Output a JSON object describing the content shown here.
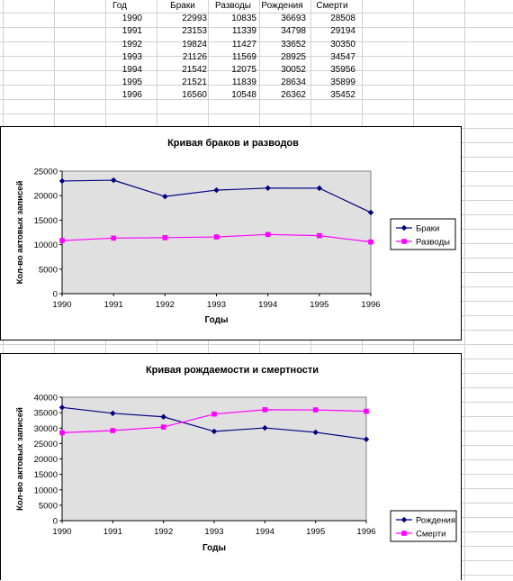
{
  "table": {
    "headers": [
      "Год",
      "Браки",
      "Разводы",
      "Рождения",
      "Смерти"
    ],
    "rows": [
      [
        "1990",
        "22993",
        "10835",
        "36693",
        "28508"
      ],
      [
        "1991",
        "23153",
        "11339",
        "34798",
        "29194"
      ],
      [
        "1992",
        "19824",
        "11427",
        "33652",
        "30350"
      ],
      [
        "1993",
        "21126",
        "11569",
        "28925",
        "34547"
      ],
      [
        "1994",
        "21542",
        "12075",
        "30052",
        "35956"
      ],
      [
        "1995",
        "21521",
        "11839",
        "28634",
        "35899"
      ],
      [
        "1996",
        "16560",
        "10548",
        "26362",
        "35452"
      ]
    ]
  },
  "chart_data": [
    {
      "type": "line",
      "title": "Кривая браков и разводов",
      "xlabel": "Годы",
      "ylabel": "Кол-во актовых записей",
      "x": [
        1990,
        1991,
        1992,
        1993,
        1994,
        1995,
        1996
      ],
      "ylim": [
        0,
        25000
      ],
      "yticks": [
        0,
        5000,
        10000,
        15000,
        20000,
        25000
      ],
      "grid": false,
      "legend": "right",
      "series": [
        {
          "name": "Браки",
          "color": "#000080",
          "marker": "diamond",
          "values": [
            22993,
            23153,
            19824,
            21126,
            21542,
            21521,
            16560
          ]
        },
        {
          "name": "Разводы",
          "color": "#ff00ff",
          "marker": "square",
          "values": [
            10835,
            11339,
            11427,
            11569,
            12075,
            11839,
            10548
          ]
        }
      ]
    },
    {
      "type": "line",
      "title": "Кривая рождаемости и смертности",
      "xlabel": "Годы",
      "ylabel": "Кол-во актовых записей",
      "x": [
        1990,
        1991,
        1992,
        1993,
        1994,
        1995,
        1996
      ],
      "ylim": [
        0,
        40000
      ],
      "yticks": [
        0,
        5000,
        10000,
        15000,
        20000,
        25000,
        30000,
        35000,
        40000
      ],
      "grid": false,
      "legend": "bottom-right",
      "series": [
        {
          "name": "Рождения",
          "color": "#000080",
          "marker": "diamond",
          "values": [
            36693,
            34798,
            33652,
            28925,
            30052,
            28634,
            26362
          ]
        },
        {
          "name": "Смерти",
          "color": "#ff00ff",
          "marker": "square",
          "values": [
            28508,
            29194,
            30350,
            34547,
            35956,
            35899,
            35452
          ]
        }
      ]
    }
  ],
  "colors": {
    "plot_area": "#e0e0e0",
    "gridlines": "#d0d0d0"
  }
}
